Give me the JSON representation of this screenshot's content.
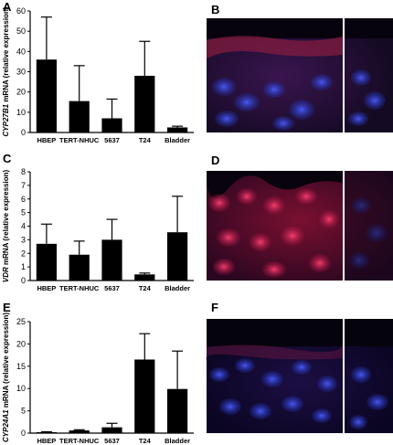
{
  "panels": {
    "A": "A",
    "B": "B",
    "C": "C",
    "D": "D",
    "E": "E",
    "F": "F"
  },
  "colors": {
    "bar": "#000000",
    "axis": "#000000"
  },
  "chart_data": [
    {
      "type": "bar",
      "panel": "A",
      "categories": [
        "HBEP",
        "TERT-NHUC",
        "5637",
        "T24",
        "Bladder"
      ],
      "values": [
        36,
        15.5,
        7,
        28,
        2.5
      ],
      "errors": [
        21,
        17.5,
        9.5,
        17,
        0.6
      ],
      "ylim": [
        0,
        60
      ],
      "yticks": [
        0,
        10,
        20,
        30,
        40,
        50,
        60
      ],
      "ylabel_gene": "CYP27B1",
      "ylabel_rest": " mRNA (relative expression)",
      "title": "",
      "xlabel": "",
      "grid": false
    },
    {
      "type": "bar",
      "panel": "C",
      "categories": [
        "HBEP",
        "TERT-NHUC",
        "5637",
        "T24",
        "Bladder"
      ],
      "values": [
        2.7,
        1.9,
        3.0,
        0.45,
        3.55
      ],
      "errors": [
        1.45,
        1.0,
        1.5,
        0.1,
        2.65
      ],
      "ylim": [
        0,
        8
      ],
      "yticks": [
        0,
        1,
        2,
        3,
        4,
        5,
        6,
        7,
        8
      ],
      "ylabel_gene": "VDR",
      "ylabel_rest": " mRNA (relative expression)",
      "title": "",
      "xlabel": "",
      "grid": false
    },
    {
      "type": "bar",
      "panel": "E",
      "categories": [
        "HBEP",
        "TERT-NHUC",
        "5637",
        "T24",
        "Bladder"
      ],
      "values": [
        0.2,
        0.6,
        1.3,
        16.5,
        9.9
      ],
      "errors": [
        0.1,
        0.15,
        0.9,
        5.8,
        8.5
      ],
      "ylim": [
        0,
        25
      ],
      "yticks": [
        0,
        5,
        10,
        15,
        20,
        25
      ],
      "ylabel_gene": "CYP24A1",
      "ylabel_rest": " mRNA (relative expression)",
      "title": "",
      "xlabel": "",
      "grid": false
    }
  ]
}
